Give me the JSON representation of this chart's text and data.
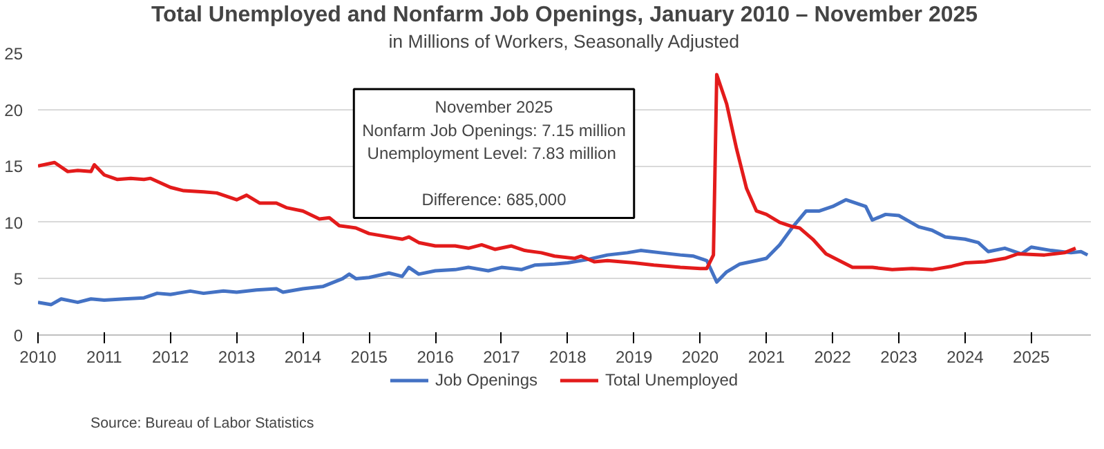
{
  "chart_data": {
    "type": "line",
    "title": "Total Unemployed and Nonfarm Job Openings, January 2010 – November 2025",
    "subtitle": "in Millions of Workers, Seasonally Adjusted",
    "annotations": [
      "November 2025",
      "Nonfarm Job Openings: 7.15 million",
      "Unemployment  Level: 7.83 million",
      "Difference: 685,000",
      "Source: Bureau of Labor Statistics"
    ],
    "xlim": [
      2010,
      2025.9
    ],
    "xticks": [
      2010,
      2011,
      2012,
      2013,
      2014,
      2015,
      2016,
      2017,
      2018,
      2019,
      2020,
      2021,
      2022,
      2023,
      2024,
      2025
    ],
    "ylim": [
      0,
      25
    ],
    "yticks": [
      0,
      5,
      10,
      15,
      20,
      25
    ],
    "grid": "y",
    "legend": "bottom",
    "line_style": "solid",
    "marker": "none",
    "series": [
      {
        "name": "Job Openings",
        "color": "#4472c4",
        "x": [
          2010.0,
          2010.2,
          2010.35,
          2010.6,
          2010.8,
          2011.0,
          2011.3,
          2011.6,
          2011.8,
          2012.0,
          2012.3,
          2012.5,
          2012.8,
          2013.0,
          2013.3,
          2013.6,
          2013.7,
          2014.0,
          2014.3,
          2014.6,
          2014.7,
          2014.8,
          2015.0,
          2015.3,
          2015.5,
          2015.6,
          2015.75,
          2016.0,
          2016.3,
          2016.5,
          2016.8,
          2017.0,
          2017.3,
          2017.5,
          2017.8,
          2018.0,
          2018.3,
          2018.6,
          2018.9,
          2019.1,
          2019.4,
          2019.7,
          2019.9,
          2020.1,
          2020.25,
          2020.4,
          2020.6,
          2020.85,
          2021.0,
          2021.2,
          2021.4,
          2021.6,
          2021.8,
          2022.0,
          2022.2,
          2022.5,
          2022.6,
          2022.8,
          2023.0,
          2023.3,
          2023.5,
          2023.7,
          2024.0,
          2024.2,
          2024.35,
          2024.6,
          2024.85,
          2025.0,
          2025.3,
          2025.6,
          2025.75,
          2025.85
        ],
        "values": [
          2.9,
          2.7,
          3.2,
          2.9,
          3.2,
          3.1,
          3.2,
          3.3,
          3.7,
          3.6,
          3.9,
          3.7,
          3.9,
          3.8,
          4.0,
          4.1,
          3.8,
          4.1,
          4.3,
          5.0,
          5.4,
          5.0,
          5.1,
          5.5,
          5.2,
          6.0,
          5.4,
          5.7,
          5.8,
          6.0,
          5.7,
          6.0,
          5.8,
          6.2,
          6.3,
          6.4,
          6.7,
          7.1,
          7.3,
          7.5,
          7.3,
          7.1,
          7.0,
          6.6,
          4.7,
          5.6,
          6.3,
          6.6,
          6.8,
          8.0,
          9.6,
          11.0,
          11.0,
          11.4,
          12.0,
          11.4,
          10.2,
          10.7,
          10.6,
          9.6,
          9.3,
          8.7,
          8.5,
          8.2,
          7.4,
          7.7,
          7.2,
          7.8,
          7.5,
          7.3,
          7.4,
          7.1
        ]
      },
      {
        "name": "Total Unemployed",
        "color": "#e31b1b",
        "x": [
          2010.0,
          2010.25,
          2010.45,
          2010.6,
          2010.8,
          2010.85,
          2011.0,
          2011.2,
          2011.4,
          2011.6,
          2011.7,
          2012.0,
          2012.2,
          2012.5,
          2012.7,
          2013.0,
          2013.15,
          2013.35,
          2013.6,
          2013.75,
          2014.0,
          2014.25,
          2014.4,
          2014.55,
          2014.8,
          2015.0,
          2015.2,
          2015.5,
          2015.6,
          2015.75,
          2016.0,
          2016.3,
          2016.5,
          2016.7,
          2016.9,
          2017.15,
          2017.35,
          2017.6,
          2017.8,
          2018.1,
          2018.2,
          2018.4,
          2018.6,
          2019.0,
          2019.3,
          2019.7,
          2020.0,
          2020.1,
          2020.2,
          2020.25,
          2020.4,
          2020.55,
          2020.7,
          2020.85,
          2021.0,
          2021.2,
          2021.4,
          2021.5,
          2021.7,
          2021.9,
          2022.1,
          2022.3,
          2022.6,
          2022.9,
          2023.2,
          2023.5,
          2023.8,
          2024.0,
          2024.3,
          2024.6,
          2024.8,
          2025.2,
          2025.5,
          2025.67
        ],
        "values": [
          15.0,
          15.3,
          14.5,
          14.6,
          14.5,
          15.1,
          14.2,
          13.8,
          13.9,
          13.8,
          13.9,
          13.1,
          12.8,
          12.7,
          12.6,
          12.0,
          12.4,
          11.7,
          11.7,
          11.3,
          11.0,
          10.3,
          10.4,
          9.7,
          9.5,
          9.0,
          8.8,
          8.5,
          8.7,
          8.2,
          7.9,
          7.9,
          7.7,
          8.0,
          7.6,
          7.9,
          7.5,
          7.3,
          7.0,
          6.8,
          7.0,
          6.5,
          6.6,
          6.4,
          6.2,
          6.0,
          5.9,
          5.9,
          7.1,
          23.1,
          20.5,
          16.5,
          13.0,
          11.0,
          10.7,
          10.0,
          9.6,
          9.5,
          8.5,
          7.2,
          6.6,
          6.0,
          6.0,
          5.8,
          5.9,
          5.8,
          6.1,
          6.4,
          6.5,
          6.8,
          7.2,
          7.1,
          7.3,
          7.7
        ]
      }
    ]
  }
}
